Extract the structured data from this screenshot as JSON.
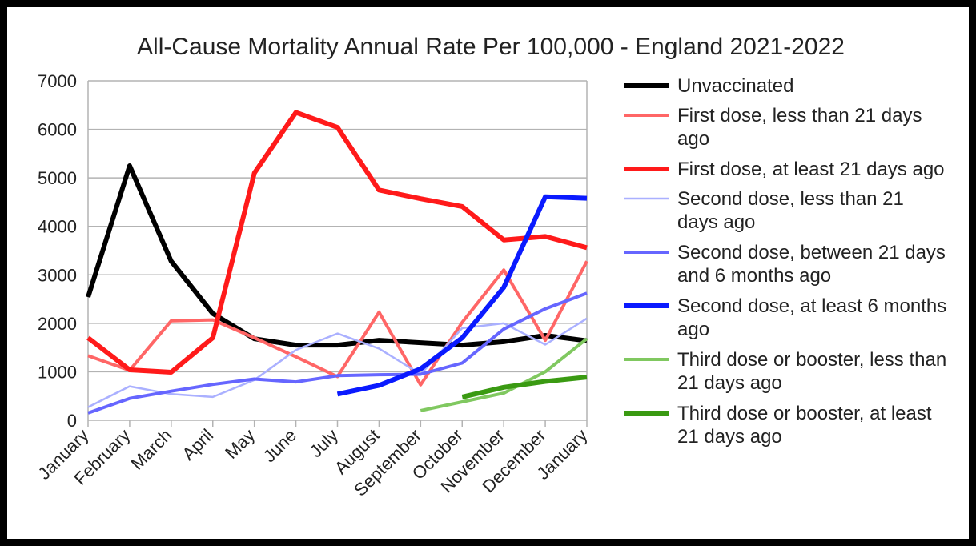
{
  "chart_data": {
    "type": "line",
    "title": "All-Cause Mortality Annual Rate Per 100,000 - England 2021-2022",
    "xlabel": "",
    "ylabel": "",
    "categories": [
      "January",
      "February",
      "March",
      "April",
      "May",
      "June",
      "July",
      "August",
      "September",
      "October",
      "November",
      "December",
      "January"
    ],
    "ylim": [
      0,
      7000
    ],
    "yticks": [
      0,
      1000,
      2000,
      3000,
      4000,
      5000,
      6000,
      7000
    ],
    "grid": "horizontal",
    "legend_position": "right",
    "series": [
      {
        "name": "Unvaccinated",
        "color": "#000000",
        "width": "thick",
        "values": [
          2540,
          5250,
          3280,
          2200,
          1680,
          1550,
          1550,
          1650,
          1600,
          1550,
          1620,
          1750,
          1640
        ]
      },
      {
        "name": "First dose, less than 21 days ago",
        "color": "#ff6666",
        "width": "medium",
        "values": [
          1330,
          1030,
          2050,
          2070,
          1700,
          1310,
          900,
          2230,
          730,
          2020,
          3100,
          1650,
          3280
        ]
      },
      {
        "name": "First dose, at least 21 days ago",
        "color": "#ff1a1a",
        "width": "thick",
        "values": [
          1700,
          1040,
          990,
          1700,
          5100,
          6350,
          6040,
          4750,
          4570,
          4410,
          3720,
          3790,
          3560
        ]
      },
      {
        "name": "Second dose, less than 21 days ago",
        "color": "#aab0ff",
        "width": "thin",
        "values": [
          270,
          700,
          540,
          480,
          830,
          1450,
          1790,
          1480,
          950,
          1900,
          2000,
          1560,
          2100
        ]
      },
      {
        "name": "Second dose, between 21 days and 6 months ago",
        "color": "#6666ff",
        "width": "medium",
        "values": [
          150,
          450,
          600,
          740,
          850,
          790,
          920,
          940,
          950,
          1180,
          1880,
          2300,
          2620
        ]
      },
      {
        "name": "Second dose, at least 6 months ago",
        "color": "#0a1aff",
        "width": "thick",
        "values": [
          null,
          null,
          null,
          null,
          null,
          null,
          540,
          720,
          1060,
          1700,
          2740,
          4610,
          4580
        ]
      },
      {
        "name": "Third dose or booster, less than 21 days ago",
        "color": "#80c860",
        "width": "medium",
        "values": [
          null,
          null,
          null,
          null,
          null,
          null,
          null,
          null,
          200,
          380,
          560,
          1000,
          1680
        ]
      },
      {
        "name": "Third dose or booster, at least 21 days ago",
        "color": "#3a9a12",
        "width": "thick",
        "values": [
          null,
          null,
          null,
          null,
          null,
          null,
          null,
          null,
          null,
          480,
          680,
          800,
          890
        ]
      }
    ]
  }
}
